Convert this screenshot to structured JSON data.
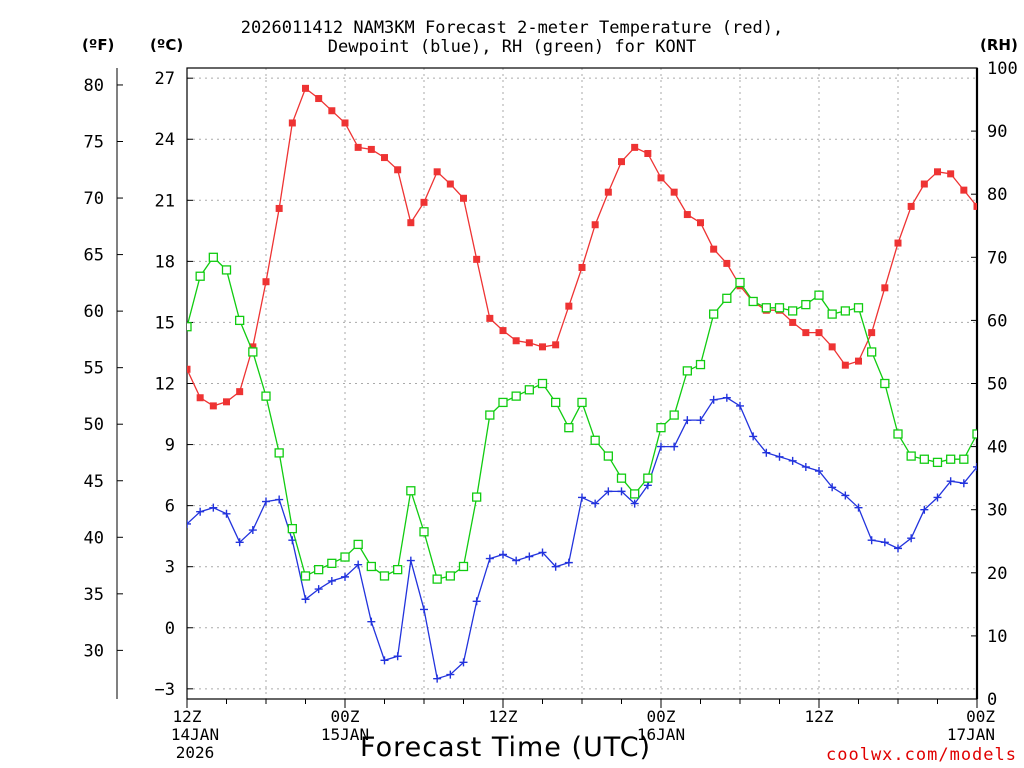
{
  "chart_data": {
    "type": "line",
    "title_line1": "2026011412 NAM3KM Forecast 2-meter Temperature (red),",
    "title_line2": "Dewpoint (blue), RH (green) for KONT",
    "unit_f": "(ºF)",
    "unit_c": "(ºC)",
    "unit_rh": "(RH)",
    "xlabel": "Forecast Time (UTC)",
    "credit": "coolwx.com/models",
    "xlim": [
      0,
      60
    ],
    "ylim_c": [
      -3.5,
      27.5
    ],
    "ylim_rh": [
      0,
      100
    ],
    "grid": true,
    "c_ticks": [
      -3,
      0,
      3,
      6,
      9,
      12,
      15,
      18,
      21,
      24,
      27
    ],
    "f_ticks": [
      30,
      35,
      40,
      45,
      50,
      55,
      60,
      65,
      70,
      75,
      80
    ],
    "rh_ticks": [
      0,
      10,
      20,
      30,
      40,
      50,
      60,
      70,
      80,
      90,
      100
    ],
    "x_ticks": [
      {
        "hour": 0,
        "lines": [
          "12Z",
          "14JAN",
          "2026"
        ]
      },
      {
        "hour": 12,
        "lines": [
          "00Z",
          "15JAN"
        ]
      },
      {
        "hour": 24,
        "lines": [
          "12Z"
        ]
      },
      {
        "hour": 36,
        "lines": [
          "00Z",
          "16JAN"
        ]
      },
      {
        "hour": 48,
        "lines": [
          "12Z"
        ]
      },
      {
        "hour": 60,
        "lines": [
          "00Z",
          "17JAN"
        ]
      }
    ],
    "hours": [
      0,
      1,
      2,
      3,
      4,
      5,
      6,
      7,
      8,
      9,
      10,
      11,
      12,
      13,
      14,
      15,
      16,
      17,
      18,
      19,
      20,
      21,
      22,
      23,
      24,
      25,
      26,
      27,
      28,
      29,
      30,
      31,
      32,
      33,
      34,
      35,
      36,
      37,
      38,
      39,
      40,
      41,
      42,
      43,
      44,
      45,
      46,
      47,
      48,
      49,
      50,
      51,
      52,
      53,
      54,
      55,
      56,
      57,
      58,
      59,
      60
    ],
    "series": [
      {
        "name": "2-meter Temperature",
        "unit": "C",
        "color": "#ee3333",
        "marker": "filled-square",
        "values": [
          12.7,
          11.3,
          10.9,
          11.1,
          11.6,
          13.8,
          17.0,
          20.6,
          24.8,
          26.5,
          26.0,
          25.4,
          24.8,
          23.6,
          23.5,
          23.1,
          22.5,
          19.9,
          20.9,
          22.4,
          21.8,
          21.1,
          18.1,
          15.2,
          14.6,
          14.1,
          14.0,
          13.8,
          13.9,
          15.8,
          17.7,
          19.8,
          21.4,
          22.9,
          23.6,
          23.3,
          22.1,
          21.4,
          20.3,
          19.9,
          18.6,
          17.9,
          16.8,
          16.0,
          15.6,
          15.6,
          15.0,
          14.5,
          14.5,
          13.8,
          12.9,
          13.1,
          14.5,
          16.7,
          18.9,
          20.7,
          21.8,
          22.4,
          22.3,
          21.5,
          20.7
        ]
      },
      {
        "name": "Dewpoint",
        "unit": "C",
        "color": "#2233dd",
        "marker": "plus",
        "values": [
          5.1,
          5.7,
          5.9,
          5.6,
          4.2,
          4.8,
          6.2,
          6.3,
          4.3,
          1.4,
          1.9,
          2.3,
          2.5,
          3.1,
          0.3,
          -1.6,
          -1.4,
          3.3,
          0.9,
          -2.5,
          -2.3,
          -1.7,
          1.3,
          3.4,
          3.6,
          3.3,
          3.5,
          3.7,
          3.0,
          3.2,
          6.4,
          6.1,
          6.7,
          6.7,
          6.1,
          7.0,
          8.9,
          8.9,
          10.2,
          10.2,
          11.2,
          11.3,
          10.9,
          9.4,
          8.6,
          8.4,
          8.2,
          7.9,
          7.7,
          6.9,
          6.5,
          5.9,
          4.3,
          4.2,
          3.9,
          4.4,
          5.8,
          6.4,
          7.2,
          7.1,
          7.9
        ]
      },
      {
        "name": "RH",
        "unit": "%",
        "color": "#11cc11",
        "marker": "open-square",
        "values": [
          59,
          67,
          70,
          68,
          60,
          55,
          48,
          39,
          27,
          19.5,
          20.5,
          21.5,
          22.5,
          24.5,
          21,
          19.5,
          20.5,
          33,
          26.5,
          19,
          19.5,
          21,
          32,
          45,
          47,
          48,
          49,
          50,
          47,
          43,
          47,
          41,
          38.5,
          35,
          32.5,
          35,
          43,
          45,
          52,
          53,
          61,
          63.5,
          66,
          63,
          62,
          62,
          61.5,
          62.5,
          64,
          61,
          61.5,
          62,
          55,
          50,
          42,
          38.5,
          38,
          37.5,
          38,
          38,
          42
        ]
      }
    ]
  }
}
